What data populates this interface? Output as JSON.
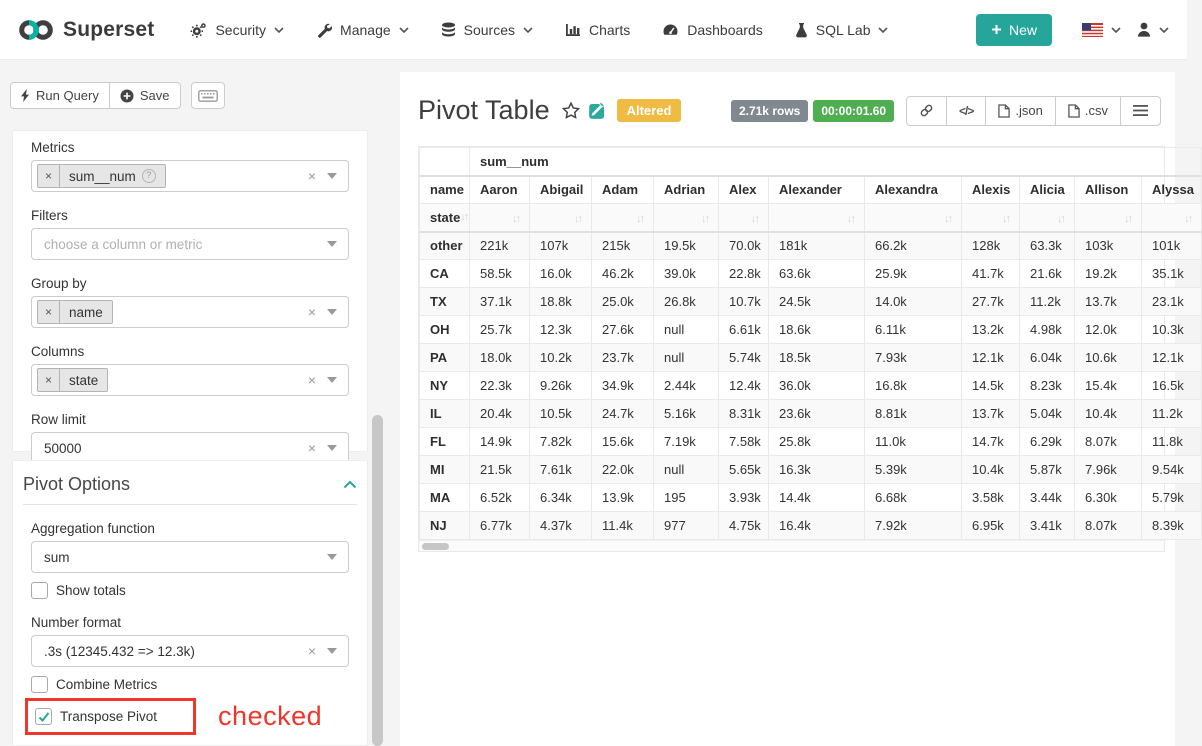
{
  "nav": {
    "brand": "Superset",
    "items": [
      {
        "label": "Security",
        "icon": "gears-icon",
        "caret": true
      },
      {
        "label": "Manage",
        "icon": "wrench-icon",
        "caret": true
      },
      {
        "label": "Sources",
        "icon": "database-icon",
        "caret": true
      },
      {
        "label": "Charts",
        "icon": "bar-chart-icon",
        "caret": false
      },
      {
        "label": "Dashboards",
        "icon": "dashboard-icon",
        "caret": false
      },
      {
        "label": "SQL Lab",
        "icon": "flask-icon",
        "caret": true
      }
    ],
    "new_button_label": "New",
    "flag": "us-flag-icon",
    "user": "user-icon"
  },
  "toolbar": {
    "run_query": "Run Query",
    "save": "Save",
    "keyboard_icon": "keyboard-icon"
  },
  "sidebar": {
    "metrics": {
      "label": "Metrics",
      "value": "sum__num"
    },
    "filters": {
      "label": "Filters",
      "placeholder": "choose a column or metric"
    },
    "group_by": {
      "label": "Group by",
      "value": "name"
    },
    "columns": {
      "label": "Columns",
      "value": "state"
    },
    "row_limit": {
      "label": "Row limit",
      "value": "50000"
    },
    "pivot_options": {
      "title": "Pivot Options",
      "aggregation_label": "Aggregation function",
      "aggregation_value": "sum",
      "show_totals_label": "Show totals",
      "show_totals_checked": false,
      "number_format_label": "Number format",
      "number_format_value": ".3s (12345.432 => 12.3k)",
      "combine_metrics_label": "Combine Metrics",
      "combine_metrics_checked": false,
      "transpose_label": "Transpose Pivot",
      "transpose_checked": true
    },
    "annotation": {
      "text": "checked"
    }
  },
  "main": {
    "title": "Pivot Table",
    "badge_altered": "Altered",
    "badge_rows": "2.71k rows",
    "badge_time": "00:00:01.60",
    "code_glyph": "</>",
    "export_json": ".json",
    "export_csv": ".csv"
  },
  "chart_data": {
    "type": "table",
    "metric_header": "sum__num",
    "col_dimension": "name",
    "row_dimension": "state",
    "columns": [
      "Aaron",
      "Abigail",
      "Adam",
      "Adrian",
      "Alex",
      "Alexander",
      "Alexandra",
      "Alexis",
      "Alicia",
      "Allison",
      "Alyssa"
    ],
    "rows": [
      {
        "state": "other",
        "values": [
          "221k",
          "107k",
          "215k",
          "19.5k",
          "70.0k",
          "181k",
          "66.2k",
          "128k",
          "63.3k",
          "103k",
          "101k"
        ]
      },
      {
        "state": "CA",
        "values": [
          "58.5k",
          "16.0k",
          "46.2k",
          "39.0k",
          "22.8k",
          "63.6k",
          "25.9k",
          "41.7k",
          "21.6k",
          "19.2k",
          "35.1k"
        ]
      },
      {
        "state": "TX",
        "values": [
          "37.1k",
          "18.8k",
          "25.0k",
          "26.8k",
          "10.7k",
          "24.5k",
          "14.0k",
          "27.7k",
          "11.2k",
          "13.7k",
          "23.1k"
        ]
      },
      {
        "state": "OH",
        "values": [
          "25.7k",
          "12.3k",
          "27.6k",
          "null",
          "6.61k",
          "18.6k",
          "6.11k",
          "13.2k",
          "4.98k",
          "12.0k",
          "10.3k"
        ]
      },
      {
        "state": "PA",
        "values": [
          "18.0k",
          "10.2k",
          "23.7k",
          "null",
          "5.74k",
          "18.5k",
          "7.93k",
          "12.1k",
          "6.04k",
          "10.6k",
          "12.1k"
        ]
      },
      {
        "state": "NY",
        "values": [
          "22.3k",
          "9.26k",
          "34.9k",
          "2.44k",
          "12.4k",
          "36.0k",
          "16.8k",
          "14.5k",
          "8.23k",
          "15.4k",
          "16.5k"
        ]
      },
      {
        "state": "IL",
        "values": [
          "20.4k",
          "10.5k",
          "24.7k",
          "5.16k",
          "8.31k",
          "23.6k",
          "8.81k",
          "13.7k",
          "5.04k",
          "10.4k",
          "11.2k"
        ]
      },
      {
        "state": "FL",
        "values": [
          "14.9k",
          "7.82k",
          "15.6k",
          "7.19k",
          "7.58k",
          "25.8k",
          "11.0k",
          "14.7k",
          "6.29k",
          "8.07k",
          "11.8k"
        ]
      },
      {
        "state": "MI",
        "values": [
          "21.5k",
          "7.61k",
          "22.0k",
          "null",
          "5.65k",
          "16.3k",
          "5.39k",
          "10.4k",
          "5.87k",
          "7.96k",
          "9.54k"
        ]
      },
      {
        "state": "MA",
        "values": [
          "6.52k",
          "6.34k",
          "13.9k",
          "195",
          "3.93k",
          "14.4k",
          "6.68k",
          "3.58k",
          "3.44k",
          "6.30k",
          "5.79k"
        ]
      },
      {
        "state": "NJ",
        "values": [
          "6.77k",
          "4.37k",
          "11.4k",
          "977",
          "4.75k",
          "16.4k",
          "7.92k",
          "6.95k",
          "3.41k",
          "8.07k",
          "8.39k"
        ]
      }
    ]
  },
  "colors": {
    "accent": "#26a69a",
    "altered_badge": "#f0bb42",
    "rows_badge": "#808890",
    "time_badge": "#4fae50",
    "annotation_red": "#f0352b"
  }
}
